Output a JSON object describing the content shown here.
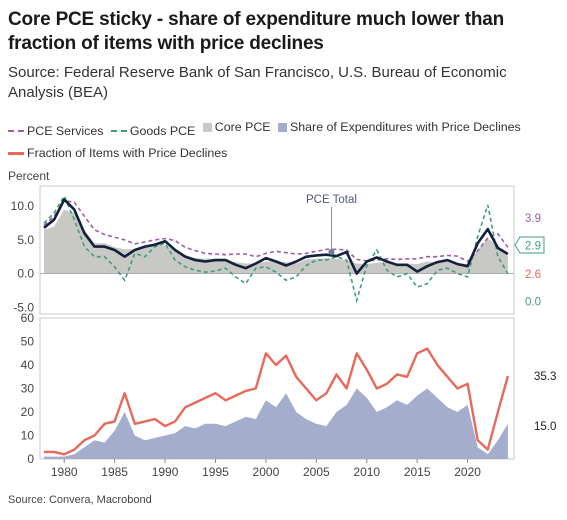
{
  "title": "Core PCE sticky - share of expenditure much lower than fraction of items with price declines",
  "subtitle": "Source: Federal Reserve Bank of San Francisco, U.S. Bureau of Economic Analysis (BEA)",
  "source_note": "Source: Convera, Macrobond",
  "colors": {
    "pce_services": "#9b5fa8",
    "goods_pce": "#3f9e7e",
    "core_pce_fill": "#c8c8c4",
    "share_exp": "#a4aecc",
    "fraction_items": "#e8695a",
    "total_line": "#14213d"
  },
  "chart_data": [
    {
      "type": "line",
      "ylabel": "Percent",
      "ylim": [
        -6,
        13
      ],
      "yticks": [
        "10.0",
        "5.0",
        "0.0",
        "-5.0"
      ],
      "ytick_values": [
        10,
        5,
        0,
        -5
      ],
      "grid": false,
      "legend_placement": "top",
      "annotation": "PCE Total",
      "annotation_x": 2006.5,
      "x": [
        1978,
        1979,
        1980,
        1981,
        1982,
        1983,
        1984,
        1985,
        1986,
        1987,
        1988,
        1989,
        1990,
        1991,
        1992,
        1993,
        1994,
        1995,
        1996,
        1997,
        1998,
        1999,
        2000,
        2001,
        2002,
        2003,
        2004,
        2005,
        2006,
        2007,
        2008,
        2009,
        2010,
        2011,
        2012,
        2013,
        2014,
        2015,
        2016,
        2017,
        2018,
        2019,
        2020,
        2021,
        2022,
        2023,
        2024
      ],
      "series": [
        {
          "name": "PCE Services",
          "style": "dashed",
          "values": [
            7.2,
            8.5,
            10.8,
            10.6,
            8.5,
            6.5,
            5.8,
            5.4,
            5.0,
            4.4,
            4.7,
            5.0,
            5.2,
            4.9,
            3.9,
            3.4,
            3.0,
            2.9,
            2.8,
            2.9,
            2.9,
            2.5,
            3.0,
            3.3,
            3.1,
            2.9,
            3.0,
            3.3,
            3.6,
            3.6,
            3.5,
            2.1,
            1.9,
            2.0,
            2.2,
            2.1,
            2.2,
            2.2,
            2.5,
            2.5,
            2.7,
            2.6,
            1.8,
            3.4,
            5.3,
            5.9,
            3.9
          ],
          "end_label": "3.9"
        },
        {
          "name": "Goods PCE",
          "style": "dashed",
          "values": [
            7.5,
            9.0,
            11.5,
            8.0,
            4.0,
            2.5,
            2.5,
            1.0,
            -1.0,
            3.0,
            2.5,
            4.0,
            4.5,
            2.0,
            1.0,
            0.5,
            0.2,
            0.4,
            0.8,
            -0.5,
            -1.5,
            0.8,
            1.0,
            0.2,
            -1.0,
            -0.5,
            1.2,
            2.0,
            2.0,
            2.5,
            2.0,
            -4.0,
            1.2,
            3.5,
            0.5,
            -0.5,
            0.0,
            -2.0,
            -1.5,
            0.5,
            0.8,
            0.0,
            -0.5,
            5.5,
            10.2,
            2.5,
            0.0
          ],
          "end_label": "0.0"
        },
        {
          "name": "Core PCE",
          "style": "area",
          "values": [
            6.5,
            7.0,
            9.5,
            9.0,
            6.5,
            4.5,
            4.5,
            3.9,
            3.6,
            3.6,
            4.2,
            4.4,
            4.1,
            3.5,
            2.8,
            2.3,
            2.2,
            2.2,
            1.8,
            1.7,
            1.5,
            1.5,
            1.8,
            1.8,
            1.7,
            1.5,
            2.1,
            2.2,
            2.3,
            2.2,
            2.0,
            1.5,
            1.4,
            1.6,
            1.7,
            1.4,
            1.5,
            1.4,
            1.8,
            1.6,
            1.9,
            1.6,
            1.4,
            3.5,
            5.2,
            4.1,
            2.6
          ],
          "end_label": "2.6"
        },
        {
          "name": "PCE Total",
          "style": "solid",
          "values": [
            6.8,
            8.0,
            11.0,
            9.5,
            6.0,
            4.0,
            4.0,
            3.5,
            2.5,
            3.5,
            4.0,
            4.3,
            4.8,
            3.5,
            2.5,
            2.0,
            1.8,
            2.0,
            2.0,
            1.3,
            0.8,
            1.5,
            2.3,
            1.8,
            1.2,
            1.8,
            2.5,
            2.7,
            2.8,
            2.6,
            3.2,
            0.0,
            1.8,
            2.4,
            1.8,
            1.3,
            1.3,
            0.3,
            1.1,
            1.7,
            2.0,
            1.4,
            1.1,
            4.5,
            6.6,
            3.8,
            2.9
          ],
          "end_label": "2.9"
        }
      ]
    },
    {
      "type": "area",
      "ylim": [
        0,
        60
      ],
      "yticks": [
        "60",
        "50",
        "40",
        "30",
        "20",
        "10",
        "0"
      ],
      "ytick_values": [
        60,
        50,
        40,
        30,
        20,
        10,
        0
      ],
      "xticks": [
        "1980",
        "1985",
        "1990",
        "1995",
        "2000",
        "2005",
        "2010",
        "2015",
        "2020"
      ],
      "xtick_values": [
        1980,
        1985,
        1990,
        1995,
        2000,
        2005,
        2010,
        2015,
        2020
      ],
      "grid": false,
      "x": [
        1978,
        1979,
        1980,
        1981,
        1982,
        1983,
        1984,
        1985,
        1986,
        1987,
        1988,
        1989,
        1990,
        1991,
        1992,
        1993,
        1994,
        1995,
        1996,
        1997,
        1998,
        1999,
        2000,
        2001,
        2002,
        2003,
        2004,
        2005,
        2006,
        2007,
        2008,
        2009,
        2010,
        2011,
        2012,
        2013,
        2014,
        2015,
        2016,
        2017,
        2018,
        2019,
        2020,
        2021,
        2022,
        2023,
        2024
      ],
      "series": [
        {
          "name": "Share of Expenditures with Price Declines",
          "style": "area",
          "values": [
            1,
            1,
            1,
            2,
            5,
            8,
            7,
            12,
            20,
            10,
            8,
            9,
            10,
            11,
            14,
            13,
            15,
            15,
            14,
            16,
            18,
            17,
            25,
            22,
            28,
            20,
            17,
            15,
            14,
            20,
            23,
            30,
            26,
            20,
            22,
            25,
            23,
            27,
            30,
            26,
            22,
            20,
            23,
            5,
            2,
            8,
            15
          ],
          "end_label": "15.0"
        },
        {
          "name": "Fraction of Items with Price Declines",
          "style": "solid",
          "values": [
            3,
            3,
            2,
            4,
            8,
            10,
            15,
            16,
            28,
            15,
            16,
            17,
            14,
            16,
            22,
            24,
            26,
            28,
            25,
            27,
            29,
            30,
            45,
            40,
            44,
            35,
            30,
            25,
            28,
            36,
            30,
            45,
            38,
            30,
            32,
            36,
            35,
            45,
            47,
            40,
            35,
            30,
            32,
            8,
            4,
            20,
            35.3
          ],
          "end_label": "35.3"
        }
      ]
    }
  ]
}
